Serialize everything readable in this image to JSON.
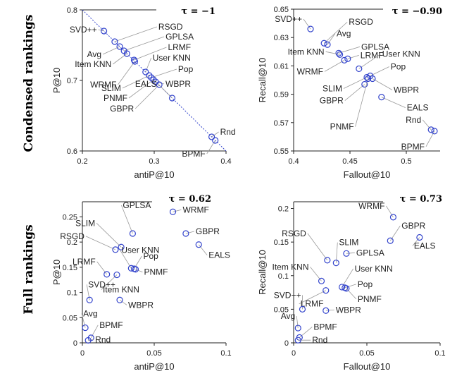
{
  "row_labels": [
    "Condensed rankings",
    "Full rankings"
  ],
  "colors": {
    "marker": "#3344cc",
    "leader": "#999999",
    "axis": "#222222"
  },
  "chart_data": [
    {
      "type": "scatter",
      "tau": "τ = −1",
      "xlabel": "antiP@10",
      "ylabel": "P@10",
      "xlim": [
        0.2,
        0.4
      ],
      "ylim": [
        0.6,
        0.8
      ],
      "xticks": [
        "0.2",
        "0.3",
        "0.4"
      ],
      "xtick_values": [
        0.2,
        0.3,
        0.4
      ],
      "yticks": [
        "0.6",
        "0.7",
        "0.8"
      ],
      "ytick_values": [
        0.6,
        0.7,
        0.8
      ],
      "diagonal": true,
      "points": [
        {
          "label": "SVD++",
          "x": 0.23,
          "y": 0.77
        },
        {
          "label": "RSGD",
          "x": 0.245,
          "y": 0.755
        },
        {
          "label": "Avg",
          "x": 0.252,
          "y": 0.748
        },
        {
          "label": "GPLSA",
          "x": 0.258,
          "y": 0.742
        },
        {
          "label": "Item KNN",
          "x": 0.262,
          "y": 0.738
        },
        {
          "label": "LRMF",
          "x": 0.272,
          "y": 0.729
        },
        {
          "label": "WRMF",
          "x": 0.273,
          "y": 0.727
        },
        {
          "label": "User KNN",
          "x": 0.288,
          "y": 0.712
        },
        {
          "label": "SLIM",
          "x": 0.293,
          "y": 0.707
        },
        {
          "label": "Pop",
          "x": 0.296,
          "y": 0.704
        },
        {
          "label": "PNMF",
          "x": 0.299,
          "y": 0.701
        },
        {
          "label": "WBPR",
          "x": 0.302,
          "y": 0.698
        },
        {
          "label": "GBPR",
          "x": 0.307,
          "y": 0.694
        },
        {
          "label": "EALS",
          "x": 0.325,
          "y": 0.675
        },
        {
          "label": "Rnd",
          "x": 0.38,
          "y": 0.62
        },
        {
          "label": "BPMF",
          "x": 0.385,
          "y": 0.615
        }
      ]
    },
    {
      "type": "scatter",
      "tau": "τ = −0.90",
      "xlabel": "Fallout@10",
      "ylabel": "Recall@10",
      "xlim": [
        0.4,
        0.53
      ],
      "ylim": [
        0.55,
        0.65
      ],
      "xticks": [
        "0.4",
        "0.45",
        "0.5"
      ],
      "xtick_values": [
        0.4,
        0.45,
        0.5
      ],
      "yticks": [
        "0.55",
        "0.57",
        "0.59",
        "0.61",
        "0.63",
        "0.65"
      ],
      "ytick_values": [
        0.55,
        0.57,
        0.59,
        0.61,
        0.63,
        0.65
      ],
      "diagonal": false,
      "points": [
        {
          "label": "SVD++",
          "x": 0.415,
          "y": 0.636
        },
        {
          "label": "RSGD",
          "x": 0.427,
          "y": 0.626
        },
        {
          "label": "Avg",
          "x": 0.43,
          "y": 0.625
        },
        {
          "label": "GPLSA",
          "x": 0.44,
          "y": 0.619
        },
        {
          "label": "Item KNN",
          "x": 0.441,
          "y": 0.618
        },
        {
          "label": "LRMF",
          "x": 0.448,
          "y": 0.615
        },
        {
          "label": "WRMF",
          "x": 0.445,
          "y": 0.614
        },
        {
          "label": "User KNN",
          "x": 0.458,
          "y": 0.608
        },
        {
          "label": "Pop",
          "x": 0.468,
          "y": 0.603
        },
        {
          "label": "SLIM",
          "x": 0.465,
          "y": 0.602
        },
        {
          "label": "WBPR",
          "x": 0.47,
          "y": 0.601
        },
        {
          "label": "GBPR",
          "x": 0.463,
          "y": 0.597
        },
        {
          "label": "EALS",
          "x": 0.478,
          "y": 0.588
        },
        {
          "label": "PNMF",
          "x": 0.466,
          "y": 0.601
        },
        {
          "label": "Rnd",
          "x": 0.522,
          "y": 0.565
        },
        {
          "label": "BPMF",
          "x": 0.525,
          "y": 0.564
        }
      ]
    },
    {
      "type": "scatter",
      "tau": "τ = 0.62",
      "xlabel": "antiP@10",
      "ylabel": "P@10",
      "xlim": [
        0,
        0.1
      ],
      "ylim": [
        0,
        0.28
      ],
      "xticks": [
        "0",
        "0.05",
        "0.1"
      ],
      "xtick_values": [
        0,
        0.05,
        0.1
      ],
      "yticks": [
        "0",
        "0.05",
        "0.1",
        "0.15",
        "0.2",
        "0.25"
      ],
      "ytick_values": [
        0,
        0.05,
        0.1,
        0.15,
        0.2,
        0.25
      ],
      "diagonal": false,
      "points": [
        {
          "label": "WRMF",
          "x": 0.063,
          "y": 0.26
        },
        {
          "label": "GPLSA",
          "x": 0.035,
          "y": 0.217
        },
        {
          "label": "GBPR",
          "x": 0.072,
          "y": 0.217
        },
        {
          "label": "SLIM",
          "x": 0.027,
          "y": 0.19
        },
        {
          "label": "RSGD",
          "x": 0.023,
          "y": 0.185
        },
        {
          "label": "EALS",
          "x": 0.081,
          "y": 0.195
        },
        {
          "label": "User KNN",
          "x": 0.034,
          "y": 0.148
        },
        {
          "label": "Pop",
          "x": 0.036,
          "y": 0.147
        },
        {
          "label": "PNMF",
          "x": 0.037,
          "y": 0.146
        },
        {
          "label": "LRMF",
          "x": 0.017,
          "y": 0.136
        },
        {
          "label": "Item KNN",
          "x": 0.024,
          "y": 0.135
        },
        {
          "label": "SVD++",
          "x": 0.005,
          "y": 0.085
        },
        {
          "label": "WBPR",
          "x": 0.026,
          "y": 0.085
        },
        {
          "label": "Avg",
          "x": 0.002,
          "y": 0.03
        },
        {
          "label": "BPMF",
          "x": 0.006,
          "y": 0.01
        },
        {
          "label": "Rnd",
          "x": 0.004,
          "y": 0.005
        }
      ]
    },
    {
      "type": "scatter",
      "tau": "τ = 0.73",
      "xlabel": "Fallout@10",
      "ylabel": "Recall@10",
      "xlim": [
        0,
        0.1
      ],
      "ylim": [
        0,
        0.21
      ],
      "xticks": [
        "0",
        "0.05",
        "0.1"
      ],
      "xtick_values": [
        0,
        0.05,
        0.1
      ],
      "yticks": [
        "0",
        "0.05",
        "0.1",
        "0.15",
        "0.2"
      ],
      "ytick_values": [
        0,
        0.05,
        0.1,
        0.15,
        0.2
      ],
      "diagonal": false,
      "points": [
        {
          "label": "WRMF",
          "x": 0.068,
          "y": 0.187
        },
        {
          "label": "GBPR",
          "x": 0.066,
          "y": 0.152
        },
        {
          "label": "EALS",
          "x": 0.086,
          "y": 0.157
        },
        {
          "label": "GPLSA",
          "x": 0.036,
          "y": 0.133
        },
        {
          "label": "RSGD",
          "x": 0.023,
          "y": 0.123
        },
        {
          "label": "SLIM",
          "x": 0.029,
          "y": 0.119
        },
        {
          "label": "Item KNN",
          "x": 0.019,
          "y": 0.092
        },
        {
          "label": "User KNN",
          "x": 0.033,
          "y": 0.083
        },
        {
          "label": "Pop",
          "x": 0.035,
          "y": 0.082
        },
        {
          "label": "PNMF",
          "x": 0.036,
          "y": 0.081
        },
        {
          "label": "LRMF",
          "x": 0.022,
          "y": 0.078
        },
        {
          "label": "SVD++",
          "x": 0.006,
          "y": 0.05
        },
        {
          "label": "WBPR",
          "x": 0.022,
          "y": 0.048
        },
        {
          "label": "Avg",
          "x": 0.003,
          "y": 0.022
        },
        {
          "label": "BPMF",
          "x": 0.004,
          "y": 0.008
        },
        {
          "label": "Rnd",
          "x": 0.003,
          "y": 0.004
        }
      ]
    }
  ]
}
